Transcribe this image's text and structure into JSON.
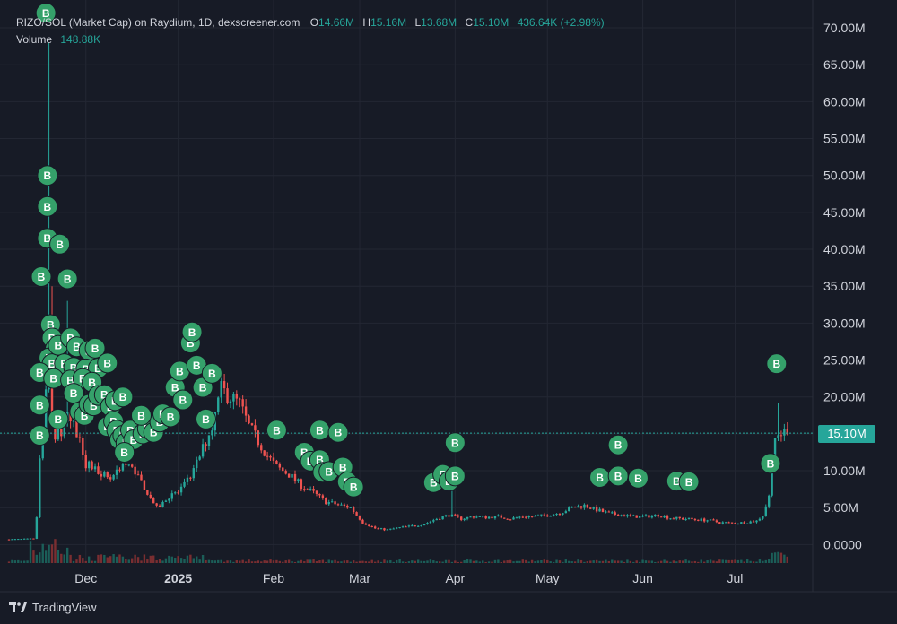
{
  "header": {
    "symbol": "RIZO/SOL (Market Cap) on Raydium, 1D, dexscreener.com",
    "o_label": "O",
    "o": "14.66M",
    "h_label": "H",
    "h": "15.16M",
    "l_label": "L",
    "l": "13.68M",
    "c_label": "C",
    "c": "15.10M",
    "change": "436.64K (+2.98%)",
    "volume_label": "Volume",
    "volume": "148.88K"
  },
  "current_price_label": "15.10M",
  "footer": {
    "brand": "TradingView"
  },
  "colors": {
    "bg": "#171b26",
    "grid": "#232733",
    "up": "#26a69a",
    "down": "#ef5350",
    "marker": "#35a16a",
    "text": "#d1d4dc"
  },
  "chart_data": {
    "type": "candlestick",
    "y_axis": {
      "ticks": [
        "70.00M",
        "65.00M",
        "60.00M",
        "55.00M",
        "50.00M",
        "45.00M",
        "40.00M",
        "35.00M",
        "30.00M",
        "25.00M",
        "20.00M",
        "15.00M",
        "10.00M",
        "5.00M",
        "0.0000"
      ],
      "range_millions": [
        0,
        70
      ]
    },
    "x_axis": {
      "labels": [
        {
          "text": "Dec",
          "day": 18
        },
        {
          "text": "2025",
          "day": 48,
          "bold": true
        },
        {
          "text": "Feb",
          "day": 79
        },
        {
          "text": "Mar",
          "day": 107
        },
        {
          "text": "Apr",
          "day": 138
        },
        {
          "text": "May",
          "day": 168
        },
        {
          "text": "Jun",
          "day": 199
        },
        {
          "text": "Jul",
          "day": 229
        }
      ],
      "day_range": [
        -7,
        251
      ]
    },
    "close_series_millions": [
      [
        -7,
        0.7
      ],
      [
        1,
        0.8
      ],
      [
        2,
        3.5
      ],
      [
        3,
        12
      ],
      [
        4,
        15
      ],
      [
        5,
        20
      ],
      [
        6,
        22
      ],
      [
        7,
        18
      ],
      [
        8,
        14
      ],
      [
        9,
        17
      ],
      [
        10,
        15
      ],
      [
        12,
        17
      ],
      [
        14,
        16
      ],
      [
        16,
        14
      ],
      [
        18,
        11
      ],
      [
        22,
        10
      ],
      [
        26,
        9
      ],
      [
        30,
        11
      ],
      [
        34,
        10
      ],
      [
        38,
        7
      ],
      [
        41,
        5
      ],
      [
        44,
        6
      ],
      [
        46,
        7
      ],
      [
        48,
        7
      ],
      [
        50,
        8
      ],
      [
        53,
        10
      ],
      [
        56,
        13
      ],
      [
        59,
        16
      ],
      [
        62,
        21
      ],
      [
        65,
        20
      ],
      [
        68,
        19
      ],
      [
        71,
        16
      ],
      [
        74,
        14
      ],
      [
        77,
        12
      ],
      [
        80,
        10.5
      ],
      [
        84,
        9.5
      ],
      [
        88,
        8
      ],
      [
        92,
        7
      ],
      [
        96,
        5.8
      ],
      [
        100,
        5.4
      ],
      [
        104,
        5
      ],
      [
        108,
        3
      ],
      [
        112,
        2.2
      ],
      [
        116,
        2
      ],
      [
        120,
        2.3
      ],
      [
        124,
        2.5
      ],
      [
        128,
        2.8
      ],
      [
        132,
        3.5
      ],
      [
        136,
        4
      ],
      [
        140,
        3.5
      ],
      [
        144,
        3.8
      ],
      [
        148,
        3.7
      ],
      [
        152,
        3.8
      ],
      [
        156,
        3.5
      ],
      [
        160,
        3.8
      ],
      [
        164,
        3.8
      ],
      [
        168,
        4
      ],
      [
        172,
        4.3
      ],
      [
        176,
        5
      ],
      [
        180,
        5.3
      ],
      [
        184,
        4.7
      ],
      [
        188,
        4.2
      ],
      [
        192,
        4
      ],
      [
        196,
        3.8
      ],
      [
        200,
        3.8
      ],
      [
        204,
        4
      ],
      [
        208,
        3.6
      ],
      [
        212,
        3.5
      ],
      [
        216,
        3.4
      ],
      [
        220,
        3.3
      ],
      [
        224,
        3
      ],
      [
        228,
        2.9
      ],
      [
        232,
        3
      ],
      [
        236,
        3.2
      ],
      [
        238,
        4
      ],
      [
        240,
        6.5
      ],
      [
        241,
        12
      ],
      [
        242,
        14.5
      ],
      [
        244,
        15.1
      ],
      [
        246,
        15.1
      ]
    ],
    "spikes": [
      {
        "day": 6,
        "high": 68
      },
      {
        "day": 7,
        "high": 35
      },
      {
        "day": 12,
        "high": 33
      },
      {
        "day": 243,
        "high": 19.2
      },
      {
        "day": 137,
        "high": 7.5
      }
    ],
    "buy_markers": [
      {
        "label": "B",
        "day": 5.5,
        "price": 50
      },
      {
        "label": "B",
        "day": 5.5,
        "price": 45.8
      },
      {
        "label": "B",
        "day": 5.5,
        "price": 41.5
      },
      {
        "label": "B",
        "day": 9.5,
        "price": 40.7
      },
      {
        "label": "B",
        "day": 3.5,
        "price": 36.3
      },
      {
        "label": "B",
        "day": 12,
        "price": 36
      },
      {
        "label": "B",
        "day": 6.5,
        "price": 29.8
      },
      {
        "label": "B",
        "day": 7,
        "price": 28
      },
      {
        "label": "B",
        "day": 8,
        "price": 26.5
      },
      {
        "label": "B",
        "day": 6,
        "price": 25.3
      },
      {
        "label": "B",
        "day": 7,
        "price": 24.5
      },
      {
        "label": "B",
        "day": 9,
        "price": 27
      },
      {
        "label": "B",
        "day": 13,
        "price": 28
      },
      {
        "label": "B",
        "day": 15,
        "price": 26.8
      },
      {
        "label": "B",
        "day": 19,
        "price": 26.3
      },
      {
        "label": "B",
        "day": 21,
        "price": 26.6
      },
      {
        "label": "B",
        "day": 11,
        "price": 24.5
      },
      {
        "label": "B",
        "day": 14,
        "price": 24
      },
      {
        "label": "B",
        "day": 18,
        "price": 23.8
      },
      {
        "label": "B",
        "day": 22,
        "price": 23.9
      },
      {
        "label": "B",
        "day": 25,
        "price": 24.6
      },
      {
        "label": "B",
        "day": 3,
        "price": 23.3
      },
      {
        "label": "B",
        "day": 7.5,
        "price": 22.5
      },
      {
        "label": "B",
        "day": 13,
        "price": 22.3
      },
      {
        "label": "B",
        "day": 17,
        "price": 22.5
      },
      {
        "label": "B",
        "day": 20,
        "price": 22
      },
      {
        "label": "B",
        "day": 3,
        "price": 18.9
      },
      {
        "label": "B",
        "day": 3,
        "price": 14.8
      },
      {
        "label": "B",
        "day": 9,
        "price": 17
      },
      {
        "label": "B",
        "day": 14,
        "price": 20.5
      },
      {
        "label": "B",
        "day": 16,
        "price": 18
      },
      {
        "label": "B",
        "day": 17.5,
        "price": 17.5
      },
      {
        "label": "B",
        "day": 19,
        "price": 19
      },
      {
        "label": "B",
        "day": 20.5,
        "price": 18.8
      },
      {
        "label": "B",
        "day": 22,
        "price": 20.2
      },
      {
        "label": "B",
        "day": 24,
        "price": 20.3
      },
      {
        "label": "B",
        "day": 26,
        "price": 18.7
      },
      {
        "label": "B",
        "day": 27.5,
        "price": 19.5
      },
      {
        "label": "B",
        "day": 30,
        "price": 20
      },
      {
        "label": "B",
        "day": 25,
        "price": 16
      },
      {
        "label": "B",
        "day": 27,
        "price": 16.7
      },
      {
        "label": "B",
        "day": 28,
        "price": 15.5
      },
      {
        "label": "B",
        "day": 29,
        "price": 14.2
      },
      {
        "label": "B",
        "day": 30,
        "price": 14.8
      },
      {
        "label": "B",
        "day": 31,
        "price": 13.8
      },
      {
        "label": "B",
        "day": 32.5,
        "price": 15.5
      },
      {
        "label": "B",
        "day": 33.5,
        "price": 14.2
      },
      {
        "label": "B",
        "day": 30.5,
        "price": 12.5
      },
      {
        "label": "B",
        "day": 36.5,
        "price": 15
      },
      {
        "label": "B",
        "day": 38,
        "price": 15.7
      },
      {
        "label": "B",
        "day": 40,
        "price": 15.2
      },
      {
        "label": "B",
        "day": 42,
        "price": 16.6
      },
      {
        "label": "B",
        "day": 43,
        "price": 17.7
      },
      {
        "label": "B",
        "day": 45.5,
        "price": 17.3
      },
      {
        "label": "B",
        "day": 47,
        "price": 21.3
      },
      {
        "label": "B",
        "day": 48.5,
        "price": 23.5
      },
      {
        "label": "B",
        "day": 49.5,
        "price": 19.6
      },
      {
        "label": "B",
        "day": 52,
        "price": 27.3
      },
      {
        "label": "B",
        "day": 52.5,
        "price": 28.8
      },
      {
        "label": "B",
        "day": 54,
        "price": 24.3
      },
      {
        "label": "B",
        "day": 56,
        "price": 21.3
      },
      {
        "label": "B",
        "day": 57,
        "price": 17
      },
      {
        "label": "B",
        "day": 59,
        "price": 23.2
      },
      {
        "label": "B",
        "day": 36,
        "price": 17.5
      },
      {
        "label": "B",
        "day": 80,
        "price": 15.5
      },
      {
        "label": "B",
        "day": 89,
        "price": 12.5
      },
      {
        "label": "B",
        "day": 91,
        "price": 11.3
      },
      {
        "label": "B",
        "day": 94,
        "price": 15.5
      },
      {
        "label": "B",
        "day": 94,
        "price": 11.5
      },
      {
        "label": "B",
        "day": 95,
        "price": 9.8
      },
      {
        "label": "B",
        "day": 97,
        "price": 9.9
      },
      {
        "label": "B",
        "day": 100,
        "price": 15.2
      },
      {
        "label": "B",
        "day": 101.5,
        "price": 10.5
      },
      {
        "label": "B",
        "day": 103,
        "price": 8.5
      },
      {
        "label": "B",
        "day": 105,
        "price": 7.8
      },
      {
        "label": "B",
        "day": 131,
        "price": 8.4
      },
      {
        "label": "B",
        "day": 134,
        "price": 9.5
      },
      {
        "label": "B",
        "day": 136,
        "price": 8.6
      },
      {
        "label": "B",
        "day": 138,
        "price": 9.3
      },
      {
        "label": "B",
        "day": 138,
        "price": 13.8
      },
      {
        "label": "B",
        "day": 185,
        "price": 9.1
      },
      {
        "label": "B",
        "day": 191,
        "price": 9.3
      },
      {
        "label": "B",
        "day": 191,
        "price": 13.5
      },
      {
        "label": "B",
        "day": 197.5,
        "price": 9
      },
      {
        "label": "B",
        "day": 210,
        "price": 8.6
      },
      {
        "label": "B",
        "day": 214,
        "price": 8.5
      },
      {
        "label": "B",
        "day": 240.5,
        "price": 11
      },
      {
        "label": "B",
        "day": 242.5,
        "price": 24.5
      },
      {
        "label": "B",
        "day": 5,
        "price": 72
      }
    ]
  }
}
